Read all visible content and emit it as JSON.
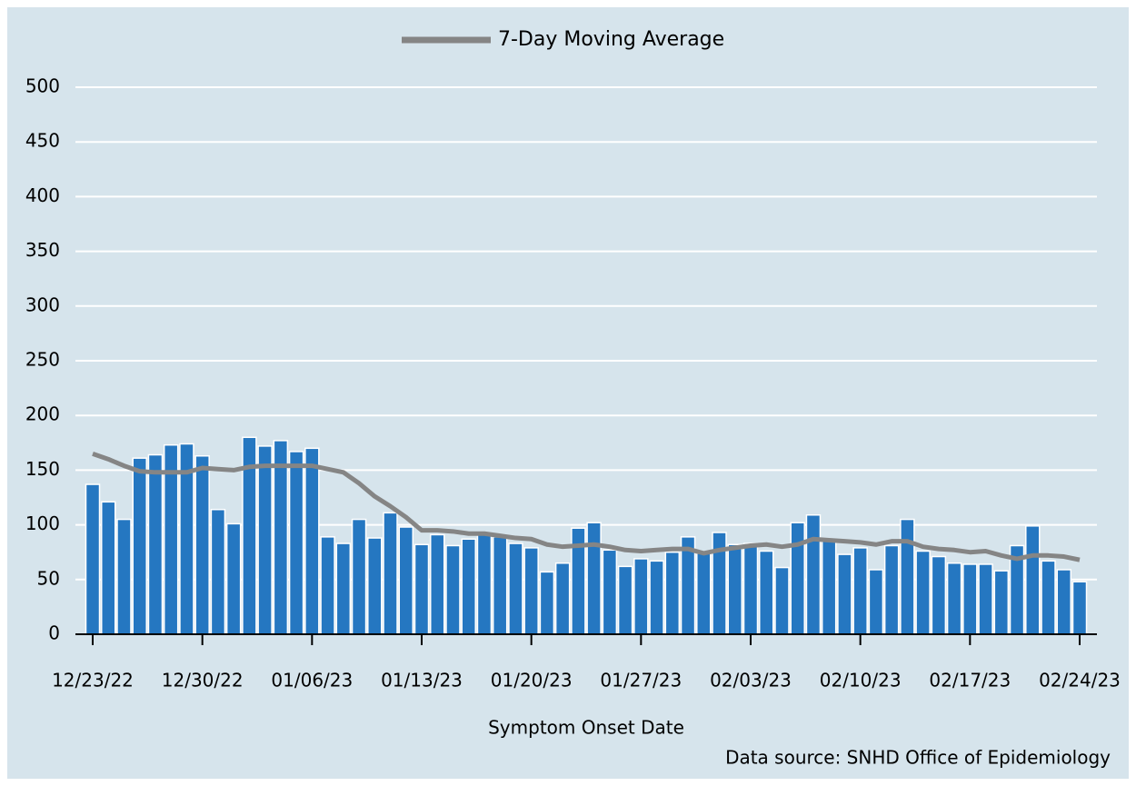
{
  "chart_data": {
    "type": "bar",
    "legend": "top",
    "grid": true,
    "x_label": "Symptom Onset Date",
    "source": "Data source: SNHD Office of Epidemiology",
    "categories": [
      "12/23/22",
      null,
      null,
      null,
      null,
      null,
      null,
      "12/30/22",
      null,
      null,
      null,
      null,
      null,
      null,
      "01/06/23",
      null,
      null,
      null,
      null,
      null,
      null,
      "01/13/23",
      null,
      null,
      null,
      null,
      null,
      null,
      "01/20/23",
      null,
      null,
      null,
      null,
      null,
      null,
      "01/27/23",
      null,
      null,
      null,
      null,
      null,
      null,
      "02/03/23",
      null,
      null,
      null,
      null,
      null,
      null,
      "02/10/23",
      null,
      null,
      null,
      null,
      null,
      null,
      "02/17/23",
      null,
      null,
      null,
      null,
      null,
      null,
      "02/24/23"
    ],
    "ylim": [
      0,
      500
    ],
    "yticks": [
      0,
      50,
      100,
      150,
      200,
      250,
      300,
      350,
      400,
      450,
      500
    ],
    "series": [
      {
        "type": "bar",
        "color": "#2577c1",
        "values": [
          137,
          121,
          105,
          161,
          164,
          173,
          174,
          163,
          114,
          101,
          180,
          172,
          177,
          167,
          170,
          89,
          83,
          105,
          88,
          111,
          98,
          82,
          91,
          81,
          87,
          91,
          89,
          83,
          79,
          57,
          65,
          97,
          102,
          77,
          62,
          69,
          67,
          75,
          89,
          74,
          93,
          82,
          83,
          76,
          61,
          102,
          109,
          86,
          73,
          79,
          59,
          81,
          105,
          76,
          71,
          65,
          64,
          64,
          58,
          81,
          99,
          67,
          59,
          48
        ]
      },
      {
        "type": "line",
        "name": "7-Day Moving Average",
        "color": "#858585",
        "values": [
          165,
          160,
          154,
          149,
          148,
          148,
          148,
          152,
          151,
          150,
          153,
          154,
          154,
          154,
          154,
          151,
          148,
          138,
          126,
          117,
          107,
          95,
          95,
          94,
          92,
          92,
          90,
          88,
          87,
          82,
          80,
          81,
          82,
          80,
          77,
          76,
          77,
          78,
          78,
          74,
          77,
          79,
          81,
          82,
          80,
          82,
          87,
          86,
          85,
          84,
          82,
          85,
          85,
          80,
          78,
          77,
          75,
          76,
          72,
          69,
          72,
          72,
          71,
          68
        ]
      }
    ]
  }
}
